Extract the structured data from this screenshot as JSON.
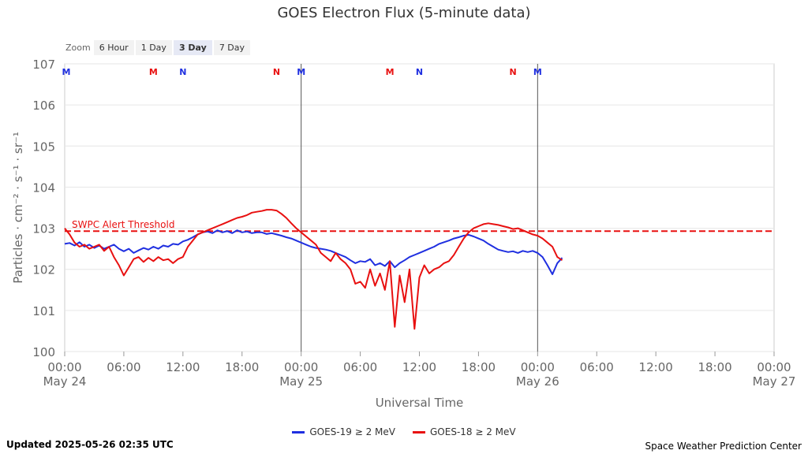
{
  "title": "GOES Electron Flux (5-minute data)",
  "zoom": {
    "label": "Zoom",
    "buttons": [
      "6 Hour",
      "1 Day",
      "3 Day",
      "7 Day"
    ],
    "selected": "3 Day"
  },
  "footer": {
    "updated": "Updated 2025-05-26 02:35 UTC",
    "credit": "Space Weather Prediction Center"
  },
  "colors": {
    "goes19": "#1f2fe0",
    "goes18": "#e81010",
    "threshold": "#e81010",
    "grid": "#e6e6e6",
    "axis": "#333333"
  },
  "chart_data": {
    "type": "line",
    "title": "GOES Electron Flux (5-minute data)",
    "xlabel": "Universal Time",
    "ylabel": "Particles · cm⁻² · s⁻¹ · sr⁻¹",
    "x_unit": "hours since 2025-05-24 00:00 UTC",
    "xlim": [
      0,
      72
    ],
    "ylim_log10": [
      0,
      7
    ],
    "y_scale": "log",
    "y_ticks": [
      {
        "value": 7,
        "label": "107"
      },
      {
        "value": 6,
        "label": "106"
      },
      {
        "value": 5,
        "label": "105"
      },
      {
        "value": 4,
        "label": "104"
      },
      {
        "value": 3,
        "label": "103"
      },
      {
        "value": 2,
        "label": "102"
      },
      {
        "value": 1,
        "label": "101"
      },
      {
        "value": 0,
        "label": "100"
      }
    ],
    "x_ticks": [
      {
        "value": 0,
        "time": "00:00",
        "date": "May 24"
      },
      {
        "value": 6,
        "time": "06:00",
        "date": ""
      },
      {
        "value": 12,
        "time": "12:00",
        "date": ""
      },
      {
        "value": 18,
        "time": "18:00",
        "date": ""
      },
      {
        "value": 24,
        "time": "00:00",
        "date": "May 25"
      },
      {
        "value": 30,
        "time": "06:00",
        "date": ""
      },
      {
        "value": 36,
        "time": "12:00",
        "date": ""
      },
      {
        "value": 42,
        "time": "18:00",
        "date": ""
      },
      {
        "value": 48,
        "time": "00:00",
        "date": "May 26"
      },
      {
        "value": 54,
        "time": "06:00",
        "date": ""
      },
      {
        "value": 60,
        "time": "12:00",
        "date": ""
      },
      {
        "value": 66,
        "time": "18:00",
        "date": ""
      },
      {
        "value": 72,
        "time": "00:00",
        "date": "May 27"
      }
    ],
    "day_lines": [
      24,
      48
    ],
    "threshold": {
      "label": "SWPC Alert Threshold",
      "value_log10": 2.93
    },
    "markers": [
      {
        "x": 0,
        "label": "M",
        "color": "#1f2fe0"
      },
      {
        "x": 9,
        "label": "M",
        "color": "#e81010"
      },
      {
        "x": 12,
        "label": "N",
        "color": "#1f2fe0"
      },
      {
        "x": 21.5,
        "label": "N",
        "color": "#e81010"
      },
      {
        "x": 24,
        "label": "M",
        "color": "#1f2fe0"
      },
      {
        "x": 33,
        "label": "M",
        "color": "#e81010"
      },
      {
        "x": 36,
        "label": "N",
        "color": "#1f2fe0"
      },
      {
        "x": 45.5,
        "label": "N",
        "color": "#e81010"
      },
      {
        "x": 48,
        "label": "M",
        "color": "#1f2fe0"
      }
    ],
    "legend_position": "bottom-center",
    "series": [
      {
        "name": "GOES-19 ≥ 2 MeV",
        "color": "#1f2fe0",
        "x": [
          0,
          0.5,
          1,
          1.5,
          2,
          2.5,
          3,
          3.5,
          4,
          4.5,
          5,
          5.5,
          6,
          6.5,
          7,
          7.5,
          8,
          8.5,
          9,
          9.5,
          10,
          10.5,
          11,
          11.5,
          12,
          12.5,
          13,
          13.5,
          14,
          14.5,
          15,
          15.5,
          16,
          16.5,
          17,
          17.5,
          18,
          18.5,
          19,
          19.5,
          20,
          20.5,
          21,
          21.5,
          22,
          22.5,
          23,
          23.5,
          24,
          24.5,
          25,
          25.5,
          26,
          26.5,
          27,
          27.5,
          28,
          28.5,
          29,
          29.5,
          30,
          30.5,
          31,
          31.5,
          32,
          32.5,
          33,
          33.5,
          34,
          34.5,
          35,
          35.5,
          36,
          36.5,
          37,
          37.5,
          38,
          38.5,
          39,
          39.5,
          40,
          40.5,
          41,
          41.5,
          42,
          42.5,
          43,
          43.5,
          44,
          44.5,
          45,
          45.5,
          46,
          46.5,
          47,
          47.5,
          48,
          48.5,
          49,
          49.5,
          50,
          50.5
        ],
        "y": [
          2.62,
          2.64,
          2.58,
          2.66,
          2.55,
          2.6,
          2.52,
          2.58,
          2.5,
          2.55,
          2.6,
          2.5,
          2.44,
          2.5,
          2.4,
          2.46,
          2.52,
          2.48,
          2.55,
          2.5,
          2.58,
          2.55,
          2.62,
          2.6,
          2.68,
          2.72,
          2.78,
          2.85,
          2.9,
          2.92,
          2.88,
          2.95,
          2.9,
          2.93,
          2.88,
          2.95,
          2.9,
          2.92,
          2.88,
          2.9,
          2.9,
          2.86,
          2.88,
          2.85,
          2.82,
          2.78,
          2.75,
          2.7,
          2.65,
          2.6,
          2.55,
          2.52,
          2.5,
          2.48,
          2.45,
          2.4,
          2.35,
          2.3,
          2.22,
          2.15,
          2.2,
          2.18,
          2.25,
          2.1,
          2.15,
          2.08,
          2.2,
          2.05,
          2.15,
          2.22,
          2.3,
          2.35,
          2.4,
          2.45,
          2.5,
          2.55,
          2.62,
          2.66,
          2.7,
          2.75,
          2.78,
          2.82,
          2.84,
          2.8,
          2.75,
          2.7,
          2.62,
          2.55,
          2.48,
          2.45,
          2.42,
          2.44,
          2.4,
          2.45,
          2.42,
          2.45,
          2.4,
          2.3,
          2.1,
          1.88,
          2.15,
          2.28
        ]
      },
      {
        "name": "GOES-18 ≥ 2 MeV",
        "color": "#e81010",
        "x": [
          0,
          0.5,
          1,
          1.5,
          2,
          2.5,
          3,
          3.5,
          4,
          4.5,
          5,
          5.5,
          6,
          6.5,
          7,
          7.5,
          8,
          8.5,
          9,
          9.5,
          10,
          10.5,
          11,
          11.5,
          12,
          12.5,
          13,
          13.5,
          14,
          14.5,
          15,
          15.5,
          16,
          16.5,
          17,
          17.5,
          18,
          18.5,
          19,
          19.5,
          20,
          20.5,
          21,
          21.5,
          22,
          22.5,
          23,
          23.5,
          24,
          24.5,
          25,
          25.5,
          26,
          26.5,
          27,
          27.5,
          28,
          28.5,
          29,
          29.5,
          30,
          30.5,
          31,
          31.5,
          32,
          32.5,
          33,
          33.5,
          34,
          34.5,
          35,
          35.5,
          36,
          36.5,
          37,
          37.5,
          38,
          38.5,
          39,
          39.5,
          40,
          40.5,
          41,
          41.5,
          42,
          42.5,
          43,
          43.5,
          44,
          44.5,
          45,
          45.5,
          46,
          46.5,
          47,
          47.5,
          48,
          48.5,
          49,
          49.5,
          50,
          50.5
        ],
        "y": [
          3.0,
          2.85,
          2.65,
          2.55,
          2.6,
          2.5,
          2.55,
          2.6,
          2.45,
          2.55,
          2.3,
          2.1,
          1.85,
          2.05,
          2.25,
          2.3,
          2.18,
          2.28,
          2.2,
          2.3,
          2.22,
          2.25,
          2.15,
          2.25,
          2.3,
          2.55,
          2.7,
          2.85,
          2.9,
          2.95,
          3.0,
          3.05,
          3.1,
          3.15,
          3.2,
          3.25,
          3.28,
          3.32,
          3.38,
          3.4,
          3.42,
          3.45,
          3.45,
          3.43,
          3.35,
          3.25,
          3.12,
          3.0,
          2.9,
          2.8,
          2.7,
          2.6,
          2.4,
          2.3,
          2.2,
          2.4,
          2.25,
          2.15,
          2.0,
          1.65,
          1.7,
          1.55,
          2.0,
          1.6,
          1.9,
          1.5,
          2.2,
          0.6,
          1.85,
          1.2,
          2.0,
          0.55,
          1.8,
          2.1,
          1.9,
          2.0,
          2.05,
          2.15,
          2.2,
          2.35,
          2.55,
          2.75,
          2.9,
          3.0,
          3.05,
          3.1,
          3.12,
          3.1,
          3.08,
          3.05,
          3.02,
          2.98,
          3.0,
          2.95,
          2.9,
          2.85,
          2.82,
          2.75,
          2.65,
          2.55,
          2.3,
          2.22
        ]
      }
    ]
  }
}
